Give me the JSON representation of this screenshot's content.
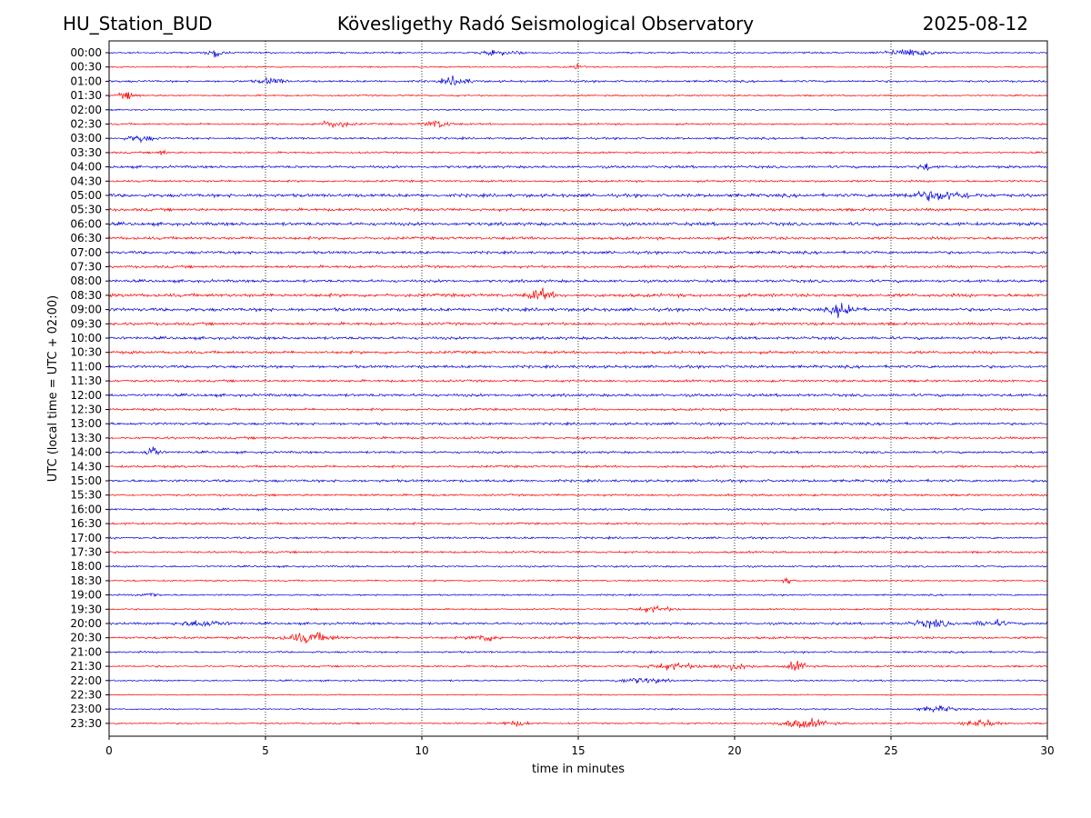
{
  "header": {
    "station": "HU_Station_BUD",
    "title": "Kövesligethy Radó Seismological Observatory",
    "date": "2025-08-12"
  },
  "colors": {
    "odd_trace": "#0000dd",
    "even_trace": "#ff0000",
    "grid": "#000000",
    "axis": "#000000"
  },
  "chart_data": {
    "type": "line",
    "chart_kind": "helicorder",
    "xlabel": "time in minutes",
    "ylabel": "UTC (local time = UTC + 02:00)",
    "xlim": [
      0,
      30
    ],
    "x_ticks": [
      0,
      5,
      10,
      15,
      20,
      25,
      30
    ],
    "vertical_grid_at": [
      5,
      10,
      15,
      20,
      25
    ],
    "grid": "dotted vertical only",
    "trace_colors": [
      "blue",
      "red"
    ],
    "rows": [
      "00:00",
      "00:30",
      "01:00",
      "01:30",
      "02:00",
      "02:30",
      "03:00",
      "03:30",
      "04:00",
      "04:30",
      "05:00",
      "05:30",
      "06:00",
      "06:30",
      "07:00",
      "07:30",
      "08:00",
      "08:30",
      "09:00",
      "09:30",
      "10:00",
      "10:30",
      "11:00",
      "11:30",
      "12:00",
      "12:30",
      "13:00",
      "13:30",
      "14:00",
      "14:30",
      "15:00",
      "15:30",
      "16:00",
      "16:30",
      "17:00",
      "17:30",
      "18:00",
      "18:30",
      "19:00",
      "19:30",
      "20:00",
      "20:30",
      "21:00",
      "21:30",
      "22:00",
      "22:30",
      "23:00",
      "23:30"
    ],
    "noise_levels": [
      0.35,
      0.3,
      0.45,
      0.35,
      0.3,
      0.4,
      0.45,
      0.4,
      0.55,
      0.45,
      0.7,
      0.6,
      0.7,
      0.6,
      0.6,
      0.55,
      0.6,
      0.7,
      0.7,
      0.6,
      0.6,
      0.6,
      0.6,
      0.5,
      0.6,
      0.5,
      0.55,
      0.5,
      0.5,
      0.5,
      0.55,
      0.45,
      0.45,
      0.45,
      0.45,
      0.45,
      0.4,
      0.35,
      0.35,
      0.35,
      0.5,
      0.5,
      0.4,
      0.4,
      0.35,
      0.25,
      0.3,
      0.35
    ],
    "bursts": [
      {
        "row": "00:00",
        "minute": 3.4,
        "amplitude": 1.9,
        "duration_min": 0.5
      },
      {
        "row": "00:00",
        "minute": 25.6,
        "amplitude": 1.6,
        "duration_min": 1.5
      },
      {
        "row": "00:00",
        "minute": 12.5,
        "amplitude": 1.0,
        "duration_min": 1.2
      },
      {
        "row": "00:30",
        "minute": 15.0,
        "amplitude": 1.0,
        "duration_min": 0.4
      },
      {
        "row": "01:00",
        "minute": 11.1,
        "amplitude": 2.0,
        "duration_min": 0.8
      },
      {
        "row": "01:00",
        "minute": 5.2,
        "amplitude": 1.3,
        "duration_min": 0.8
      },
      {
        "row": "01:30",
        "minute": 0.6,
        "amplitude": 1.4,
        "duration_min": 0.6
      },
      {
        "row": "02:30",
        "minute": 7.2,
        "amplitude": 1.4,
        "duration_min": 1.0
      },
      {
        "row": "02:30",
        "minute": 10.5,
        "amplitude": 1.5,
        "duration_min": 0.8
      },
      {
        "row": "03:00",
        "minute": 1.0,
        "amplitude": 1.3,
        "duration_min": 0.8
      },
      {
        "row": "03:30",
        "minute": 1.7,
        "amplitude": 1.1,
        "duration_min": 0.3
      },
      {
        "row": "04:00",
        "minute": 26.1,
        "amplitude": 1.5,
        "duration_min": 0.4
      },
      {
        "row": "05:00",
        "minute": 26.5,
        "amplitude": 1.8,
        "duration_min": 2.0
      },
      {
        "row": "08:30",
        "minute": 13.8,
        "amplitude": 2.4,
        "duration_min": 0.7
      },
      {
        "row": "09:00",
        "minute": 23.5,
        "amplitude": 3.2,
        "duration_min": 0.7
      },
      {
        "row": "14:00",
        "minute": 1.4,
        "amplitude": 3.0,
        "duration_min": 0.4
      },
      {
        "row": "18:30",
        "minute": 21.7,
        "amplitude": 1.2,
        "duration_min": 0.3
      },
      {
        "row": "19:00",
        "minute": 1.3,
        "amplitude": 1.6,
        "duration_min": 0.4
      },
      {
        "row": "19:30",
        "minute": 17.4,
        "amplitude": 1.1,
        "duration_min": 1.2
      },
      {
        "row": "20:00",
        "minute": 3.0,
        "amplitude": 1.3,
        "duration_min": 1.4
      },
      {
        "row": "20:00",
        "minute": 26.3,
        "amplitude": 1.5,
        "duration_min": 1.2
      },
      {
        "row": "20:00",
        "minute": 28.2,
        "amplitude": 1.2,
        "duration_min": 1.0
      },
      {
        "row": "20:30",
        "minute": 6.4,
        "amplitude": 2.1,
        "duration_min": 1.4
      },
      {
        "row": "20:30",
        "minute": 12.0,
        "amplitude": 1.5,
        "duration_min": 0.8
      },
      {
        "row": "21:30",
        "minute": 22.0,
        "amplitude": 2.0,
        "duration_min": 0.6
      },
      {
        "row": "21:30",
        "minute": 18.0,
        "amplitude": 1.3,
        "duration_min": 1.5
      },
      {
        "row": "21:30",
        "minute": 20.0,
        "amplitude": 1.2,
        "duration_min": 1.2
      },
      {
        "row": "22:00",
        "minute": 17.0,
        "amplitude": 1.1,
        "duration_min": 1.5
      },
      {
        "row": "23:00",
        "minute": 26.5,
        "amplitude": 1.2,
        "duration_min": 1.2
      },
      {
        "row": "23:30",
        "minute": 22.2,
        "amplitude": 1.9,
        "duration_min": 1.5
      },
      {
        "row": "23:30",
        "minute": 27.9,
        "amplitude": 1.5,
        "duration_min": 1.0
      },
      {
        "row": "23:30",
        "minute": 13.0,
        "amplitude": 1.0,
        "duration_min": 0.8
      }
    ]
  }
}
